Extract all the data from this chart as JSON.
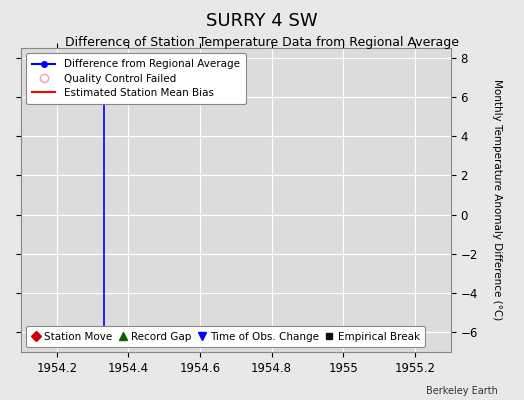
{
  "title": "SURRY 4 SW",
  "subtitle": "Difference of Station Temperature Data from Regional Average",
  "ylabel": "Monthly Temperature Anomaly Difference (°C)",
  "watermark": "Berkeley Earth",
  "xlim": [
    1954.1,
    1955.3
  ],
  "ylim": [
    -7,
    8.5
  ],
  "yticks": [
    -6,
    -4,
    -2,
    0,
    2,
    4,
    6,
    8
  ],
  "xticks": [
    1954.2,
    1954.4,
    1954.6,
    1954.8,
    1955.0,
    1955.2
  ],
  "xtick_labels": [
    "1954.2",
    "1954.4",
    "1954.6",
    "1954.8",
    "1955",
    "1955.2"
  ],
  "fig_bg_color": "#e8e8e8",
  "plot_bg_color": "#dcdcdc",
  "grid_color": "#ffffff",
  "line_x": [
    1954.333,
    1954.333
  ],
  "line_y": [
    7.5,
    -6.3
  ],
  "line_color": "#0000ff",
  "legend1": [
    {
      "label": "Difference from Regional Average",
      "color": "#0000ff",
      "lw": 1.5,
      "marker": "o",
      "ms": 4,
      "mfc": "#0000ff",
      "mec": "#0000ff"
    },
    {
      "label": "Quality Control Failed",
      "color": "#ff99bb",
      "lw": 0,
      "marker": "o",
      "ms": 6,
      "mfc": "none",
      "mec": "#ff99bb"
    },
    {
      "label": "Estimated Station Mean Bias",
      "color": "#ff0000",
      "lw": 1.5,
      "marker": "none",
      "ms": 0,
      "mfc": "none",
      "mec": "none"
    }
  ],
  "legend2": [
    {
      "label": "Station Move",
      "color": "#cc0000",
      "marker": "D",
      "ms": 5
    },
    {
      "label": "Record Gap",
      "color": "#006600",
      "marker": "^",
      "ms": 6
    },
    {
      "label": "Time of Obs. Change",
      "color": "#0000ff",
      "marker": "v",
      "ms": 6
    },
    {
      "label": "Empirical Break",
      "color": "#111111",
      "marker": "s",
      "ms": 5
    }
  ],
  "title_fontsize": 13,
  "subtitle_fontsize": 9,
  "tick_fontsize": 8.5,
  "ylabel_fontsize": 7.5,
  "legend1_fontsize": 7.5,
  "legend2_fontsize": 7.5
}
